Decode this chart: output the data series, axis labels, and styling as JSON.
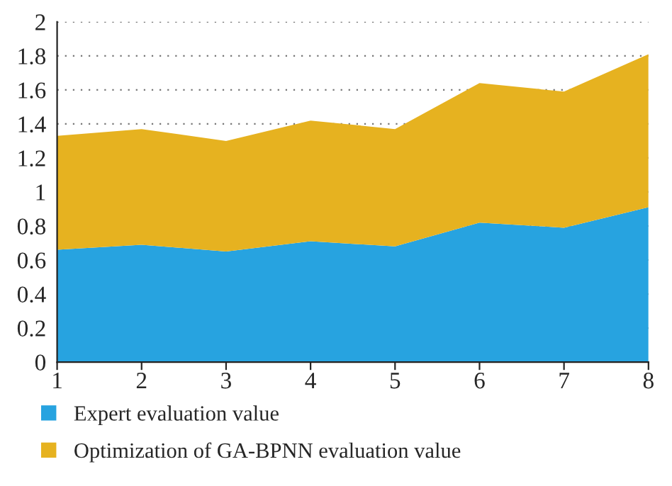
{
  "chart_data": {
    "type": "area",
    "stacked": true,
    "x": [
      1,
      2,
      3,
      4,
      5,
      6,
      7,
      8
    ],
    "series": [
      {
        "name": "Expert evaluation value",
        "color": "#27a3e0",
        "values": [
          0.66,
          0.69,
          0.65,
          0.71,
          0.68,
          0.82,
          0.79,
          0.91
        ]
      },
      {
        "name": "Optimization of GA-BPNN evaluation value",
        "color": "#e6b220",
        "values": [
          0.67,
          0.68,
          0.65,
          0.71,
          0.69,
          0.82,
          0.8,
          0.9
        ]
      }
    ],
    "xlim": [
      1,
      8
    ],
    "xticks": [
      1,
      2,
      3,
      4,
      5,
      6,
      7,
      8
    ],
    "ylim": [
      0,
      2
    ],
    "yticks": [
      0,
      0.2,
      0.4,
      0.6,
      0.8,
      1,
      1.2,
      1.4,
      1.6,
      1.8,
      2
    ],
    "grid": "y",
    "legend": "bottom"
  }
}
